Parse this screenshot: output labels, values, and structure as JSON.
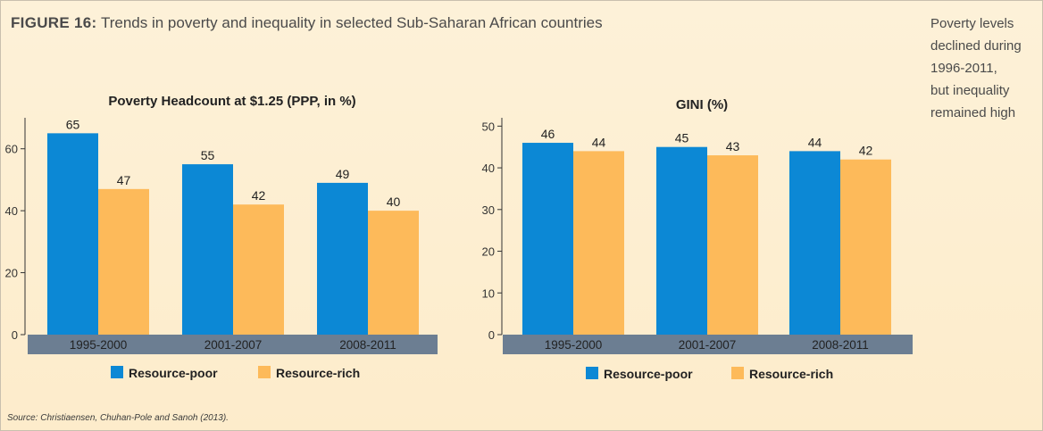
{
  "figure": {
    "label": "FIGURE 16:",
    "title": "Trends in poverty and inequality in selected Sub-Saharan African countries"
  },
  "side_note": {
    "lines": [
      "Poverty levels",
      "declined during",
      "1996-2011,",
      "but inequality",
      "remained high"
    ]
  },
  "source": "Source: Christiaensen, Chuhan-Pole and Sanoh (2013).",
  "colors": {
    "resource_poor": "#0c88d5",
    "resource_rich": "#fdba5a",
    "category_band": "#6c7e92"
  },
  "chart_data": [
    {
      "type": "bar",
      "title": "Poverty Headcount at $1.25 (PPP, in %)",
      "categories": [
        "1995-2000",
        "2001-2007",
        "2008-2011"
      ],
      "series": [
        {
          "name": "Resource-poor",
          "values": [
            65,
            55,
            49
          ]
        },
        {
          "name": "Resource-rich",
          "values": [
            47,
            42,
            40
          ]
        }
      ],
      "ylim": [
        0,
        70
      ],
      "yticks": [
        0,
        20,
        40,
        60
      ],
      "legend": "bottom",
      "grid": false
    },
    {
      "type": "bar",
      "title": "GINI (%)",
      "categories": [
        "1995-2000",
        "2001-2007",
        "2008-2011"
      ],
      "series": [
        {
          "name": "Resource-poor",
          "values": [
            46,
            45,
            44
          ]
        },
        {
          "name": "Resource-rich",
          "values": [
            44,
            43,
            42
          ]
        }
      ],
      "ylim": [
        0,
        52
      ],
      "yticks": [
        0,
        10,
        20,
        30,
        40,
        50
      ],
      "legend": "bottom",
      "grid": false
    }
  ]
}
